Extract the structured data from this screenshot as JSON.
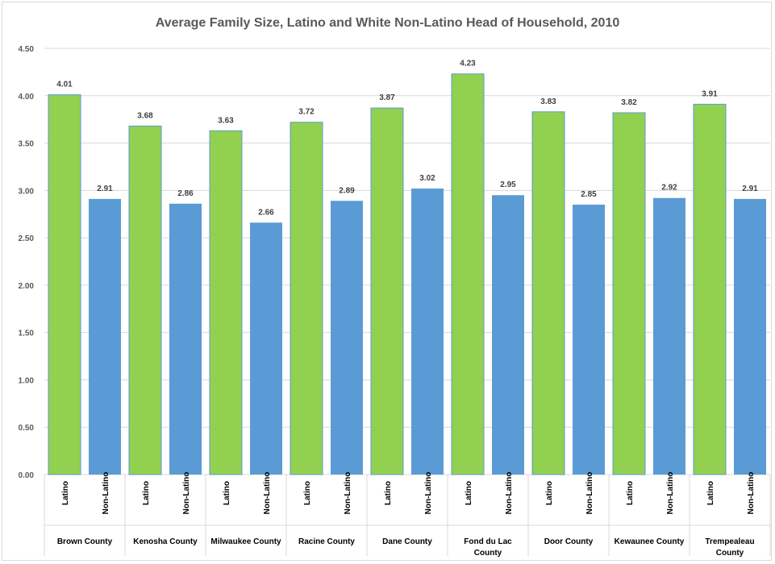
{
  "chart_data": {
    "type": "bar",
    "title": "Average Family Size, Latino and White Non-Latino Head of Household, 2010",
    "xlabel": "",
    "ylabel": "",
    "ylim": [
      0,
      4.5
    ],
    "yticks": [
      "0.00",
      "0.50",
      "1.00",
      "1.50",
      "2.00",
      "2.50",
      "3.00",
      "3.50",
      "4.00",
      "4.50"
    ],
    "grid": true,
    "legend": "none",
    "groups": [
      {
        "name": "Brown County",
        "lines": [
          "Brown County"
        ],
        "bars": [
          {
            "label": "Latino",
            "value": 4.01
          },
          {
            "label": "Non-Latino",
            "value": 2.91
          }
        ]
      },
      {
        "name": "Kenosha County",
        "lines": [
          "Kenosha County"
        ],
        "bars": [
          {
            "label": "Latino",
            "value": 3.68
          },
          {
            "label": "Non-Latino",
            "value": 2.86
          }
        ]
      },
      {
        "name": "Milwaukee County",
        "lines": [
          "Milwaukee County"
        ],
        "bars": [
          {
            "label": "Latino",
            "value": 3.63
          },
          {
            "label": "Non-Latino",
            "value": 2.66
          }
        ]
      },
      {
        "name": "Racine County",
        "lines": [
          "Racine County"
        ],
        "bars": [
          {
            "label": "Latino",
            "value": 3.72
          },
          {
            "label": "Non-Latino",
            "value": 2.89
          }
        ]
      },
      {
        "name": "Dane County",
        "lines": [
          "Dane County"
        ],
        "bars": [
          {
            "label": "Latino",
            "value": 3.87
          },
          {
            "label": "Non-Latino",
            "value": 3.02
          }
        ]
      },
      {
        "name": "Fond du Lac County",
        "lines": [
          "Fond du Lac",
          "County"
        ],
        "bars": [
          {
            "label": "Latino",
            "value": 4.23
          },
          {
            "label": "Non-Latino",
            "value": 2.95
          }
        ]
      },
      {
        "name": "Door County",
        "lines": [
          "Door County"
        ],
        "bars": [
          {
            "label": "Latino",
            "value": 3.83
          },
          {
            "label": "Non-Latino",
            "value": 2.85
          }
        ]
      },
      {
        "name": "Kewaunee County",
        "lines": [
          "Kewaunee County"
        ],
        "bars": [
          {
            "label": "Latino",
            "value": 3.82
          },
          {
            "label": "Non-Latino",
            "value": 2.92
          }
        ]
      },
      {
        "name": "Trempealeau County",
        "lines": [
          "Trempealeau",
          "County"
        ],
        "bars": [
          {
            "label": "Latino",
            "value": 3.91
          },
          {
            "label": "Non-Latino",
            "value": 2.91
          }
        ]
      }
    ],
    "colors": {
      "Latino": "#92d050",
      "Latino_border": "#5b9bd5",
      "Non-Latino": "#5b9bd5",
      "grid": "#d9d9d9",
      "axis_text": "#595959"
    }
  }
}
